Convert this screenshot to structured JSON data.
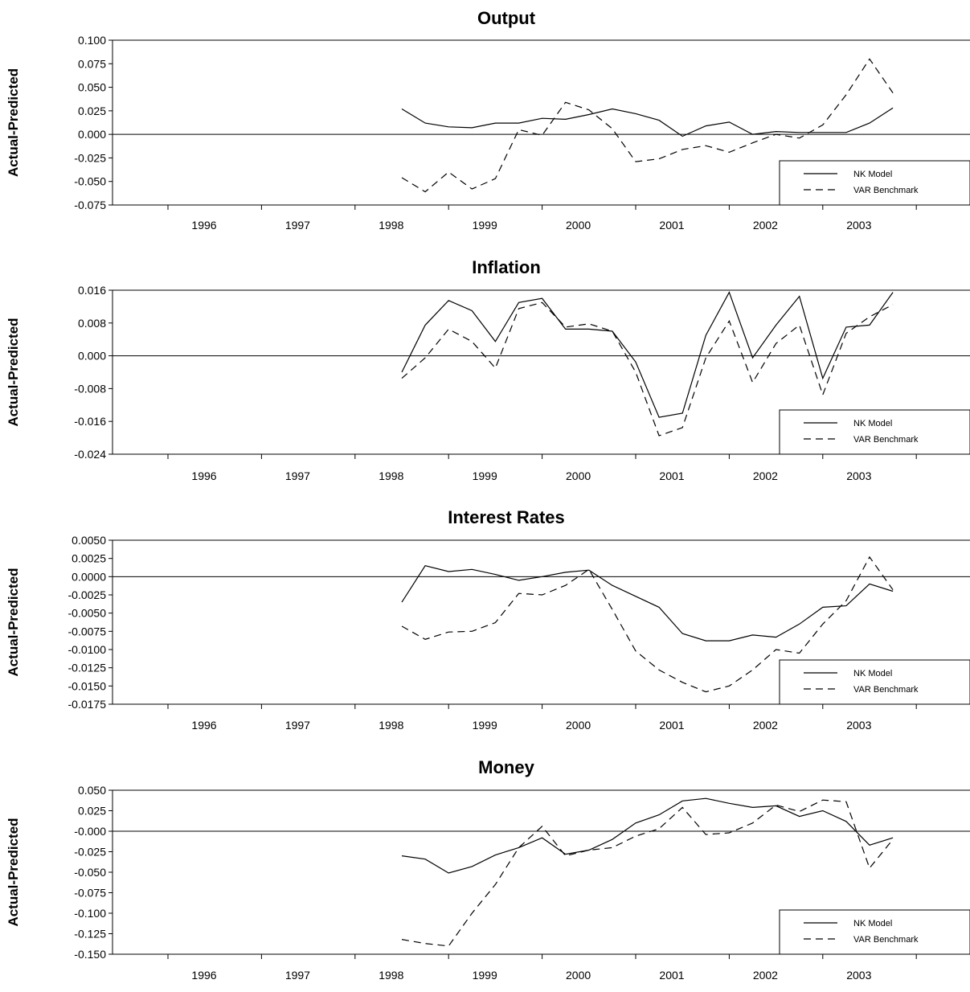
{
  "figure": {
    "background": "#ffffff",
    "line_color": "#000000",
    "x_tick_labels": [
      "1996",
      "1997",
      "1998",
      "1999",
      "2000",
      "2001",
      "2002",
      "2003"
    ]
  },
  "chart_data": [
    {
      "type": "line",
      "title": "Output",
      "ylabel": "Actual-Predicted",
      "ylim": [
        -0.075,
        0.1
      ],
      "yticks": [
        "0.100",
        "0.075",
        "0.050",
        "0.025",
        "0.000",
        "-0.025",
        "-0.050",
        "-0.075"
      ],
      "xlim": [
        1995.25,
        2004.25
      ],
      "xticks": [
        1996,
        1997,
        1998,
        1999,
        2000,
        2001,
        2002,
        2003
      ],
      "x_tick_labels": [
        "1996",
        "1997",
        "1998",
        "1999",
        "2000",
        "2001",
        "2002",
        "2003"
      ],
      "legend_position": "bottom-right",
      "x": [
        1998.5,
        1998.75,
        1999.0,
        1999.25,
        1999.5,
        1999.75,
        2000.0,
        2000.25,
        2000.5,
        2000.75,
        2001.0,
        2001.25,
        2001.5,
        2001.75,
        2002.0,
        2002.25,
        2002.5,
        2002.75,
        2003.0,
        2003.25,
        2003.5,
        2003.75
      ],
      "series": [
        {
          "name": "NK Model",
          "dash": "solid",
          "values": [
            0.027,
            0.012,
            0.008,
            0.007,
            0.012,
            0.012,
            0.017,
            0.016,
            0.021,
            0.027,
            0.022,
            0.015,
            -0.002,
            0.009,
            0.013,
            0.0,
            0.003,
            0.002,
            0.002,
            0.002,
            0.012,
            0.028
          ]
        },
        {
          "name": "VAR Benchmark",
          "dash": "dashed",
          "values": [
            -0.046,
            -0.061,
            -0.04,
            -0.058,
            -0.047,
            0.005,
            -0.001,
            0.034,
            0.026,
            0.006,
            -0.029,
            -0.026,
            -0.016,
            -0.012,
            -0.019,
            -0.009,
            0.0,
            -0.004,
            0.01,
            0.042,
            0.08,
            0.044
          ]
        }
      ]
    },
    {
      "type": "line",
      "title": "Inflation",
      "ylabel": "Actual-Predicted",
      "ylim": [
        -0.024,
        0.016
      ],
      "yticks": [
        "0.016",
        "0.008",
        "0.000",
        "-0.008",
        "-0.016",
        "-0.024"
      ],
      "xlim": [
        1995.25,
        2004.25
      ],
      "xticks": [
        1996,
        1997,
        1998,
        1999,
        2000,
        2001,
        2002,
        2003
      ],
      "x_tick_labels": [
        "1996",
        "1997",
        "1998",
        "1999",
        "2000",
        "2001",
        "2002",
        "2003"
      ],
      "legend_position": "bottom-right",
      "x": [
        1998.5,
        1998.75,
        1999.0,
        1999.25,
        1999.5,
        1999.75,
        2000.0,
        2000.25,
        2000.5,
        2000.75,
        2001.0,
        2001.25,
        2001.5,
        2001.75,
        2002.0,
        2002.25,
        2002.5,
        2002.75,
        2003.0,
        2003.25,
        2003.5,
        2003.75
      ],
      "series": [
        {
          "name": "NK Model",
          "dash": "solid",
          "values": [
            -0.004,
            0.0075,
            0.0135,
            0.011,
            0.0035,
            0.013,
            0.014,
            0.0065,
            0.0065,
            0.006,
            -0.0015,
            -0.015,
            -0.014,
            0.005,
            0.0155,
            -0.0005,
            0.0075,
            0.0145,
            -0.0055,
            0.007,
            0.0075,
            0.0155
          ]
        },
        {
          "name": "VAR Benchmark",
          "dash": "dashed",
          "values": [
            -0.0055,
            -0.0005,
            0.0065,
            0.0035,
            -0.003,
            0.0115,
            0.013,
            0.007,
            0.0078,
            0.006,
            -0.004,
            -0.0195,
            -0.0175,
            -0.0005,
            0.0085,
            -0.0065,
            0.003,
            0.0075,
            -0.0095,
            0.0055,
            0.0095,
            0.0125
          ]
        }
      ]
    },
    {
      "type": "line",
      "title": "Interest Rates",
      "ylabel": "Actual-Predicted",
      "ylim": [
        -0.0175,
        0.005
      ],
      "yticks": [
        "0.0050",
        "0.0025",
        "0.0000",
        "-0.0025",
        "-0.0050",
        "-0.0075",
        "-0.0100",
        "-0.0125",
        "-0.0150",
        "-0.0175"
      ],
      "xlim": [
        1995.25,
        2004.25
      ],
      "xticks": [
        1996,
        1997,
        1998,
        1999,
        2000,
        2001,
        2002,
        2003
      ],
      "x_tick_labels": [
        "1996",
        "1997",
        "1998",
        "1999",
        "2000",
        "2001",
        "2002",
        "2003"
      ],
      "legend_position": "bottom-right",
      "x": [
        1998.5,
        1998.75,
        1999.0,
        1999.25,
        1999.5,
        1999.75,
        2000.0,
        2000.25,
        2000.5,
        2000.75,
        2001.0,
        2001.25,
        2001.5,
        2001.75,
        2002.0,
        2002.25,
        2002.5,
        2002.75,
        2003.0,
        2003.25,
        2003.5,
        2003.75
      ],
      "series": [
        {
          "name": "NK Model",
          "dash": "solid",
          "values": [
            -0.0035,
            0.0015,
            0.0007,
            0.001,
            0.0003,
            -0.0005,
            0.0,
            0.0006,
            0.0009,
            -0.0012,
            -0.0027,
            -0.0042,
            -0.0078,
            -0.0088,
            -0.0088,
            -0.008,
            -0.0083,
            -0.0065,
            -0.0042,
            -0.004,
            -0.001,
            -0.002
          ]
        },
        {
          "name": "VAR Benchmark",
          "dash": "dashed",
          "values": [
            -0.0068,
            -0.0086,
            -0.0076,
            -0.0075,
            -0.0063,
            -0.0023,
            -0.0025,
            -0.0012,
            0.001,
            -0.0045,
            -0.0102,
            -0.0128,
            -0.0145,
            -0.0158,
            -0.015,
            -0.0128,
            -0.01,
            -0.0105,
            -0.0065,
            -0.0033,
            0.0027,
            -0.0018
          ]
        }
      ]
    },
    {
      "type": "line",
      "title": "Money",
      "ylabel": "Actual-Predicted",
      "ylim": [
        -0.15,
        0.05
      ],
      "yticks": [
        "0.050",
        "0.025",
        "-0.000",
        "-0.025",
        "-0.050",
        "-0.075",
        "-0.100",
        "-0.125",
        "-0.150"
      ],
      "xlim": [
        1995.25,
        2004.25
      ],
      "xticks": [
        1996,
        1997,
        1998,
        1999,
        2000,
        2001,
        2002,
        2003
      ],
      "x_tick_labels": [
        "1996",
        "1997",
        "1998",
        "1999",
        "2000",
        "2001",
        "2002",
        "2003"
      ],
      "legend_position": "bottom-right",
      "x": [
        1998.5,
        1998.75,
        1999.0,
        1999.25,
        1999.5,
        1999.75,
        2000.0,
        2000.25,
        2000.5,
        2000.75,
        2001.0,
        2001.25,
        2001.5,
        2001.75,
        2002.0,
        2002.25,
        2002.5,
        2002.75,
        2003.0,
        2003.25,
        2003.5,
        2003.75
      ],
      "series": [
        {
          "name": "NK Model",
          "dash": "solid",
          "values": [
            -0.03,
            -0.034,
            -0.051,
            -0.043,
            -0.029,
            -0.02,
            -0.008,
            -0.028,
            -0.023,
            -0.01,
            0.01,
            0.02,
            0.037,
            0.04,
            0.034,
            0.029,
            0.031,
            0.018,
            0.025,
            0.012,
            -0.017,
            -0.008
          ]
        },
        {
          "name": "VAR Benchmark",
          "dash": "dashed",
          "values": [
            -0.132,
            -0.137,
            -0.14,
            -0.1,
            -0.065,
            -0.02,
            0.006,
            -0.03,
            -0.023,
            -0.02,
            -0.006,
            0.003,
            0.029,
            -0.004,
            -0.002,
            0.01,
            0.032,
            0.024,
            0.038,
            0.036,
            -0.045,
            -0.01
          ]
        }
      ]
    }
  ]
}
